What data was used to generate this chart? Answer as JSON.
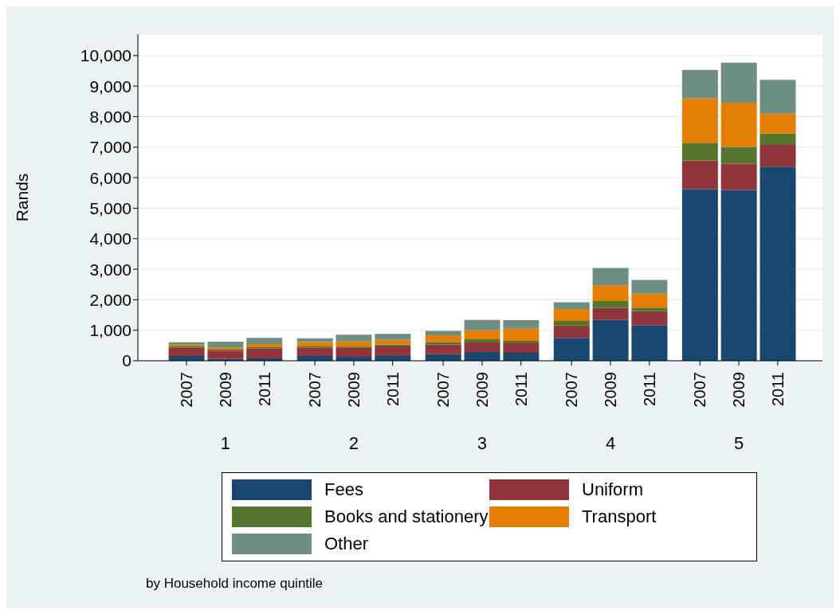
{
  "chart_data": {
    "type": "bar",
    "stacked": true,
    "ylabel": "Rands",
    "categories": [
      "2007",
      "2009",
      "2011",
      "2007",
      "2009",
      "2011",
      "2007",
      "2009",
      "2011",
      "2007",
      "2009",
      "2011",
      "2007",
      "2009",
      "2011"
    ],
    "series": [
      {
        "name": "Fees",
        "color": "#1a476f",
        "values": [
          155,
          60,
          80,
          155,
          130,
          155,
          215,
          285,
          260,
          750,
          1340,
          1165,
          5625,
          5600,
          6360
        ]
      },
      {
        "name": "Uniform",
        "color": "#90353b",
        "values": [
          270,
          270,
          320,
          270,
          285,
          313,
          323,
          313,
          313,
          405,
          390,
          460,
          938,
          860,
          715
        ]
      },
      {
        "name": "Books and stationery",
        "color": "#55752f",
        "values": [
          45,
          35,
          45,
          45,
          50,
          70,
          78,
          104,
          78,
          150,
          225,
          115,
          580,
          545,
          375
        ]
      },
      {
        "name": "Transport",
        "color": "#e37e00",
        "values": [
          60,
          70,
          105,
          145,
          165,
          146,
          216,
          295,
          399,
          390,
          520,
          460,
          1451,
          1450,
          645
        ]
      },
      {
        "name": "Other",
        "color": "#6e8e84",
        "values": [
          80,
          190,
          200,
          120,
          225,
          200,
          148,
          338,
          278,
          225,
          565,
          450,
          937,
          1310,
          1110
        ]
      }
    ],
    "ylim": [
      0,
      10700
    ],
    "yticks": [
      0,
      {
        "value": 1000,
        "label": "1,000"
      },
      {
        "value": 2000,
        "label": "2,000"
      },
      {
        "value": 3000,
        "label": "3,000"
      },
      {
        "value": 4000,
        "label": "4,000"
      },
      {
        "value": 5000,
        "label": "5,000"
      },
      {
        "value": 6000,
        "label": "6,000"
      },
      {
        "value": 7000,
        "label": "7,000"
      },
      {
        "value": 8000,
        "label": "8,000"
      },
      {
        "value": 9000,
        "label": "9,000"
      },
      {
        "value": 10000,
        "label": "10,000"
      }
    ],
    "grid": "y",
    "legend": "bottom",
    "annotations": [
      "1",
      "2",
      "3",
      "4",
      "5",
      "by Household income quintile"
    ]
  }
}
